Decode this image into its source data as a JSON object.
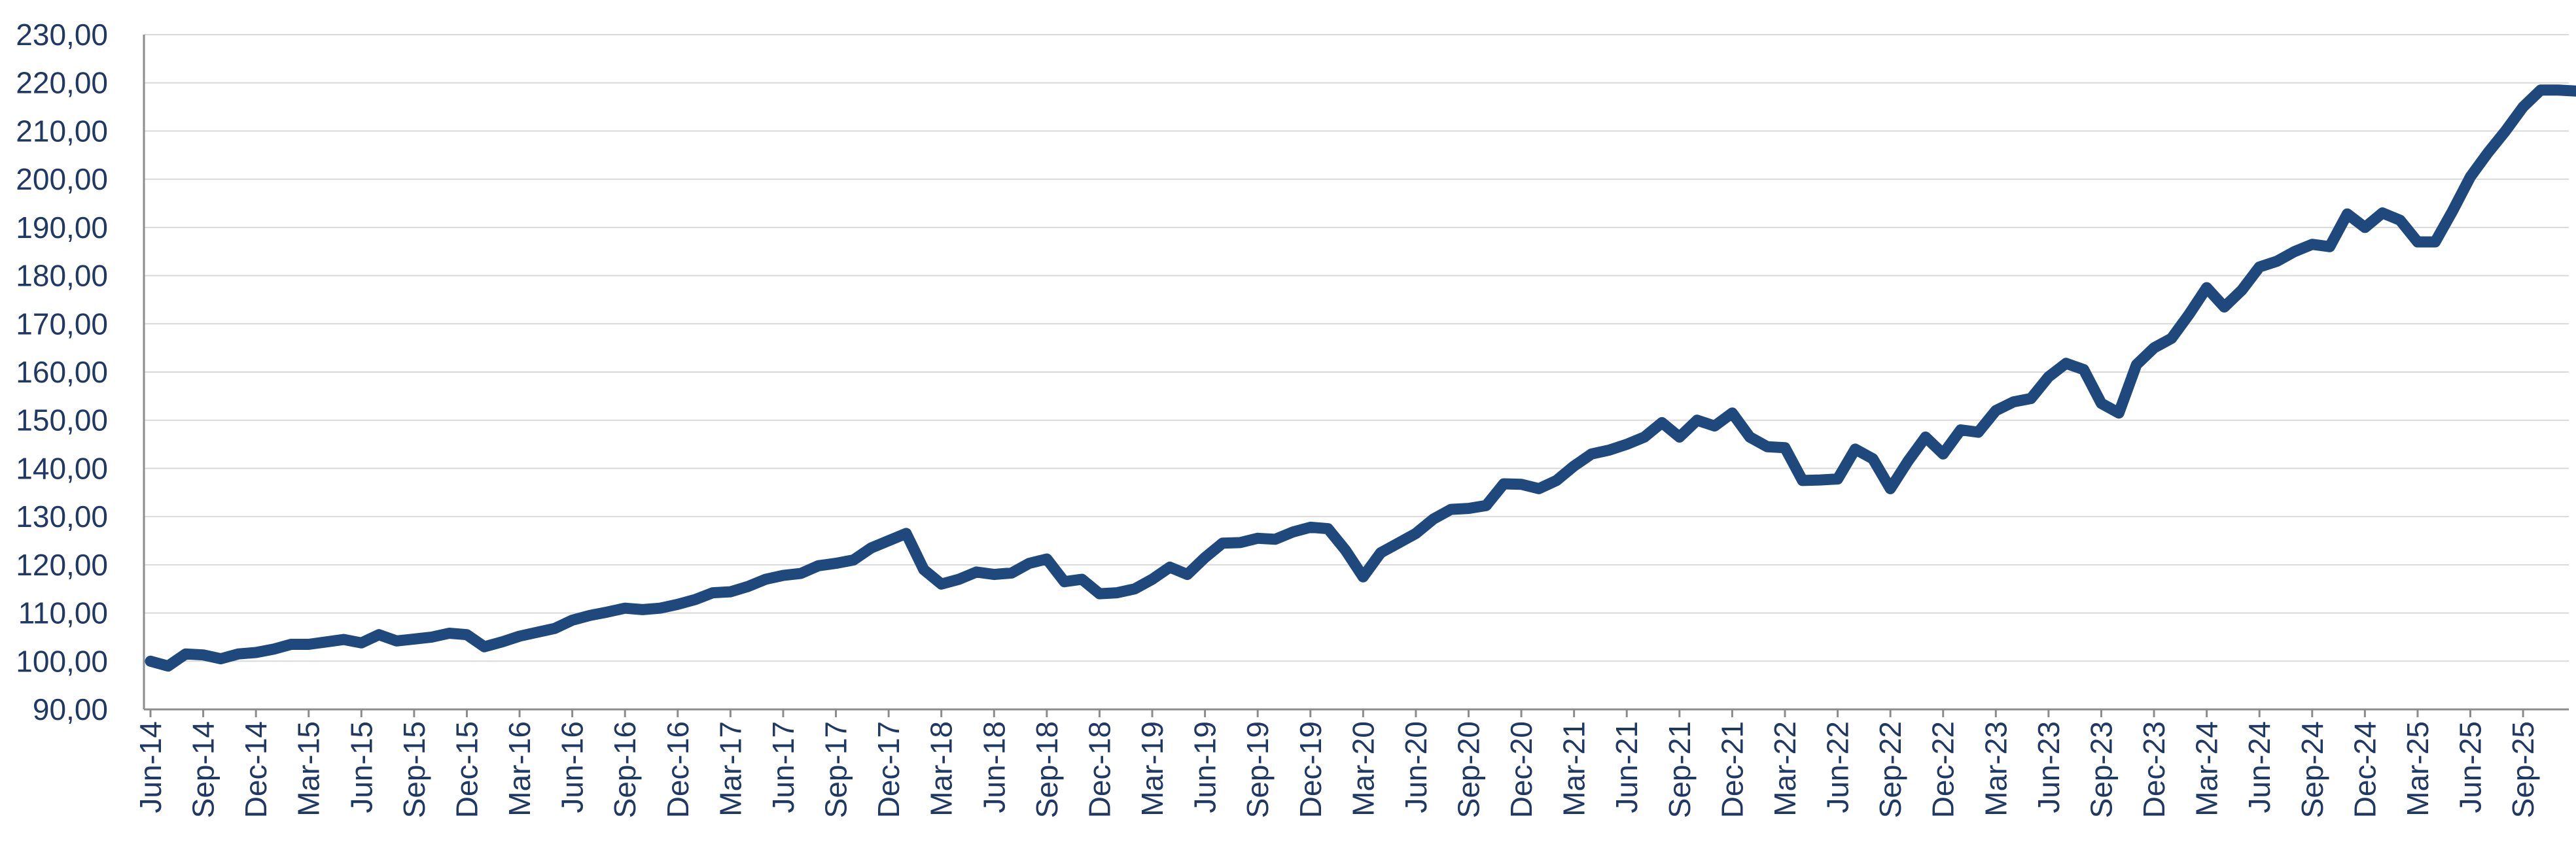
{
  "chart_data": {
    "type": "line",
    "title": "",
    "xlabel": "",
    "ylabel": "",
    "ylim": [
      90,
      230
    ],
    "y_ticks": [
      "90,00",
      "100,00",
      "110,00",
      "120,00",
      "130,00",
      "140,00",
      "150,00",
      "160,00",
      "170,00",
      "180,00",
      "190,00",
      "200,00",
      "210,00",
      "220,00",
      "230,00"
    ],
    "x_tick_labels": [
      "Jun-14",
      "Sep-14",
      "Dec-14",
      "Mar-15",
      "Jun-15",
      "Sep-15",
      "Dec-15",
      "Mar-16",
      "Jun-16",
      "Sep-16",
      "Dec-16",
      "Mar-17",
      "Jun-17",
      "Sep-17",
      "Dec-17",
      "Mar-18",
      "Jun-18",
      "Sep-18",
      "Dec-18",
      "Mar-19",
      "Jun-19",
      "Sep-19",
      "Dec-19",
      "Mar-20",
      "Jun-20",
      "Sep-20",
      "Dec-20",
      "Mar-21",
      "Jun-21",
      "Sep-21",
      "Dec-21",
      "Mar-22",
      "Jun-22",
      "Sep-22",
      "Dec-22",
      "Mar-23",
      "Jun-23",
      "Sep-23",
      "Dec-23",
      "Mar-24",
      "Jun-24",
      "Sep-24",
      "Dec-24",
      "Mar-25",
      "Jun-25",
      "Sep-25"
    ],
    "grid": true,
    "legend": "none",
    "colors": {
      "line": "#1f497d",
      "text": "#1f3864",
      "grid": "#d9d9d9",
      "axis": "#8c8c8c"
    },
    "series": [
      {
        "values": [
          100.0,
          99.0,
          101.5,
          101.3,
          100.5,
          101.5,
          101.8,
          102.5,
          103.5,
          103.5,
          104.0,
          104.5,
          103.8,
          105.5,
          104.2,
          104.6,
          105.0,
          105.8,
          105.5,
          103.0,
          104.0,
          105.2,
          106.0,
          106.8,
          108.5,
          109.5,
          110.2,
          111.0,
          110.7,
          111.0,
          111.8,
          112.8,
          114.2,
          114.4,
          115.5,
          117.0,
          117.8,
          118.2,
          119.8,
          120.3,
          121.0,
          123.5,
          125.0,
          126.5,
          119.0,
          116.0,
          117.0,
          118.5,
          118.0,
          118.3,
          120.3,
          121.2,
          116.5,
          117.0,
          114.0,
          114.2,
          115.0,
          117.0,
          119.5,
          118.0,
          121.5,
          124.5,
          124.6,
          125.5,
          125.3,
          126.8,
          127.8,
          127.5,
          123.0,
          117.5,
          122.5,
          124.5,
          126.5,
          129.5,
          131.5,
          131.7,
          132.3,
          136.8,
          136.7,
          135.8,
          137.5,
          140.5,
          143.0,
          143.8,
          145.0,
          146.5,
          149.5,
          146.5,
          150.0,
          148.8,
          151.5,
          146.5,
          144.5,
          144.3,
          137.5,
          137.6,
          137.8,
          144.0,
          142.0,
          135.8,
          141.5,
          146.5,
          143.0,
          148.0,
          147.5,
          152.0,
          153.8,
          154.5,
          159.0,
          161.8,
          160.5,
          153.5,
          151.5,
          161.5,
          165.0,
          167.0,
          172.0,
          177.5,
          173.5,
          177.0,
          181.8,
          183.0,
          185.0,
          186.5,
          186.0,
          192.8,
          190.0,
          193.0,
          191.5,
          187.0,
          187.0,
          193.5,
          200.5,
          205.5,
          210.0,
          215.0,
          218.5,
          218.5,
          218.3
        ]
      }
    ]
  }
}
